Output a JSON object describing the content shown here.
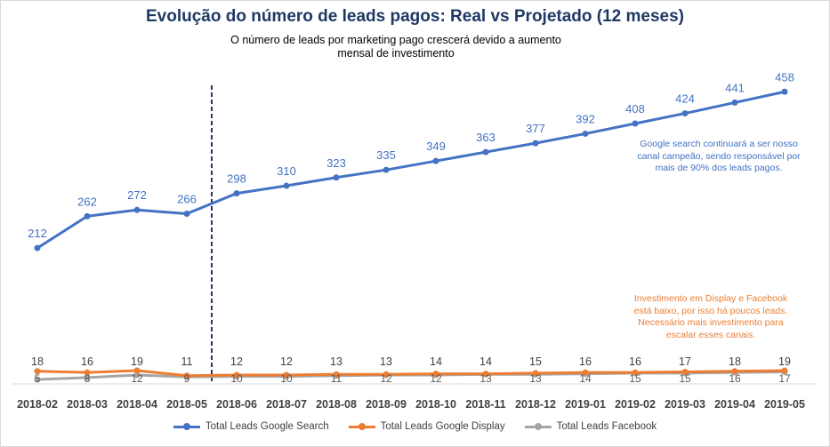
{
  "chart_data": {
    "type": "line",
    "title": "Evolução do número de leads pagos: Real vs Projetado (12 meses)",
    "subtitle_line1": "O número de leads por marketing pago crescerá devido a aumento",
    "subtitle_line2": "mensal de investimento",
    "categories": [
      "2018-02",
      "2018-03",
      "2018-04",
      "2018-05",
      "2018-06",
      "2018-07",
      "2018-08",
      "2018-09",
      "2018-10",
      "2018-11",
      "2018-12",
      "2019-01",
      "2019-02",
      "2019-03",
      "2019-04",
      "2019-05"
    ],
    "divider_after_category": "2018-05",
    "ylim": [
      0,
      480
    ],
    "grid": false,
    "legend_position": "bottom",
    "series": [
      {
        "name": "Total Leads Google Search",
        "color": "#4472c4",
        "values": [
          212,
          262,
          272,
          266,
          298,
          310,
          323,
          335,
          349,
          363,
          377,
          392,
          408,
          424,
          441,
          458
        ]
      },
      {
        "name": "Total Leads Google Display",
        "color": "#ed7d31",
        "values": [
          18,
          16,
          19,
          11,
          12,
          12,
          13,
          13,
          14,
          14,
          15,
          16,
          16,
          17,
          18,
          19
        ]
      },
      {
        "name": "Total Leads Facebook",
        "color": "#a5a5a5",
        "values": [
          5,
          8,
          12,
          9,
          10,
          10,
          11,
          12,
          12,
          13,
          13,
          14,
          15,
          15,
          16,
          17
        ]
      }
    ],
    "annotations": {
      "google_search_note": [
        "Google search continuará a ser nosso",
        "canal campeão, sendo responsável por",
        "mais de 90% dos leads pagos."
      ],
      "display_facebook_note": [
        "Investimento em Display e Facebook",
        "está baixo, por isso há poucos leads.",
        "Necessário mais investimento para",
        "escalar esses canais."
      ]
    }
  }
}
